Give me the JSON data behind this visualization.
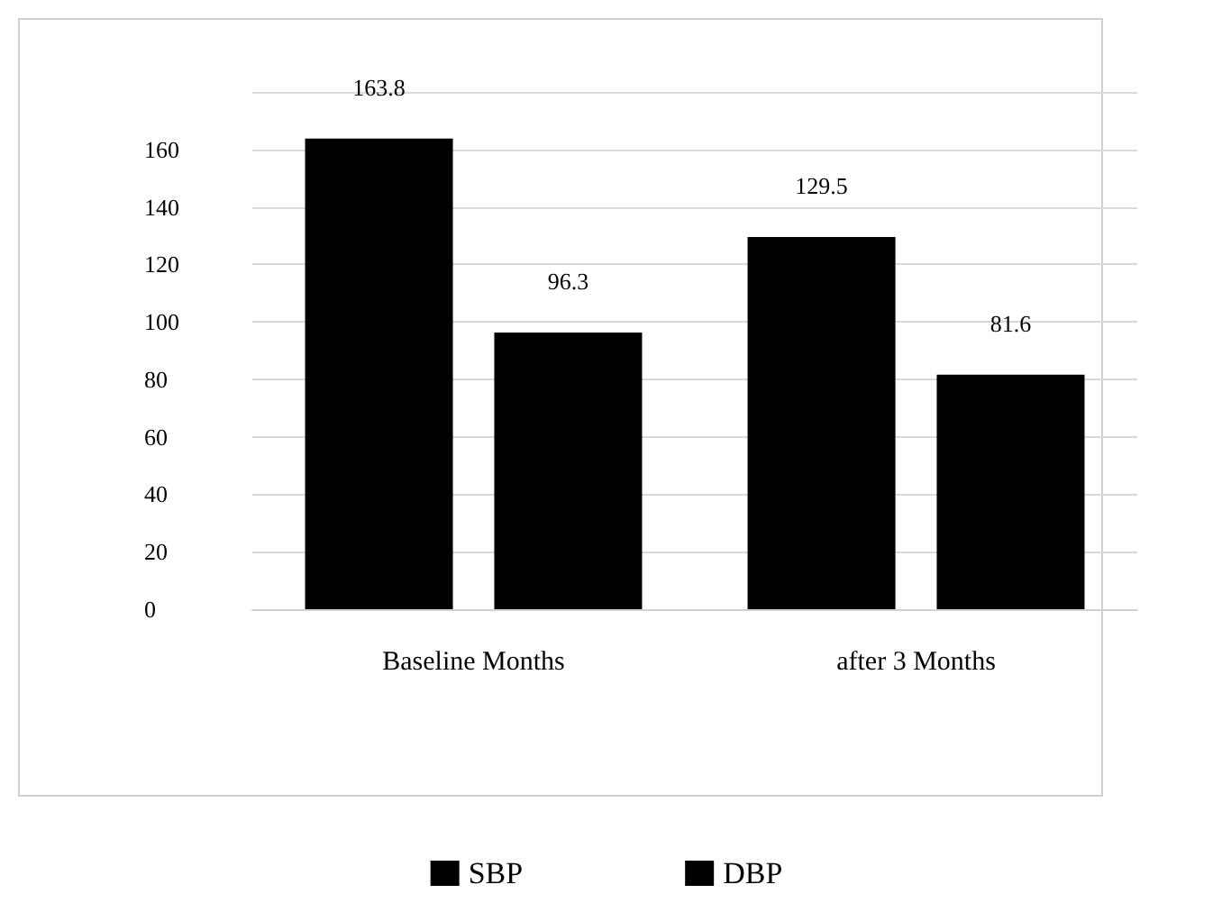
{
  "chart_data": {
    "type": "bar",
    "categories": [
      "Baseline Months",
      "after 3 Months"
    ],
    "series": [
      {
        "name": "SBP",
        "color": "#000000",
        "values": [
          163.8,
          129.5
        ]
      },
      {
        "name": "DBP",
        "color": "#000000",
        "values": [
          96.3,
          81.6
        ]
      }
    ],
    "ylim": [
      0,
      180
    ],
    "yticks": [
      0,
      20,
      40,
      60,
      80,
      100,
      120,
      140,
      160,
      {
        "value": 180,
        "label": null
      }
    ],
    "grid": "y",
    "legend": "bottom",
    "data_labels": true
  }
}
